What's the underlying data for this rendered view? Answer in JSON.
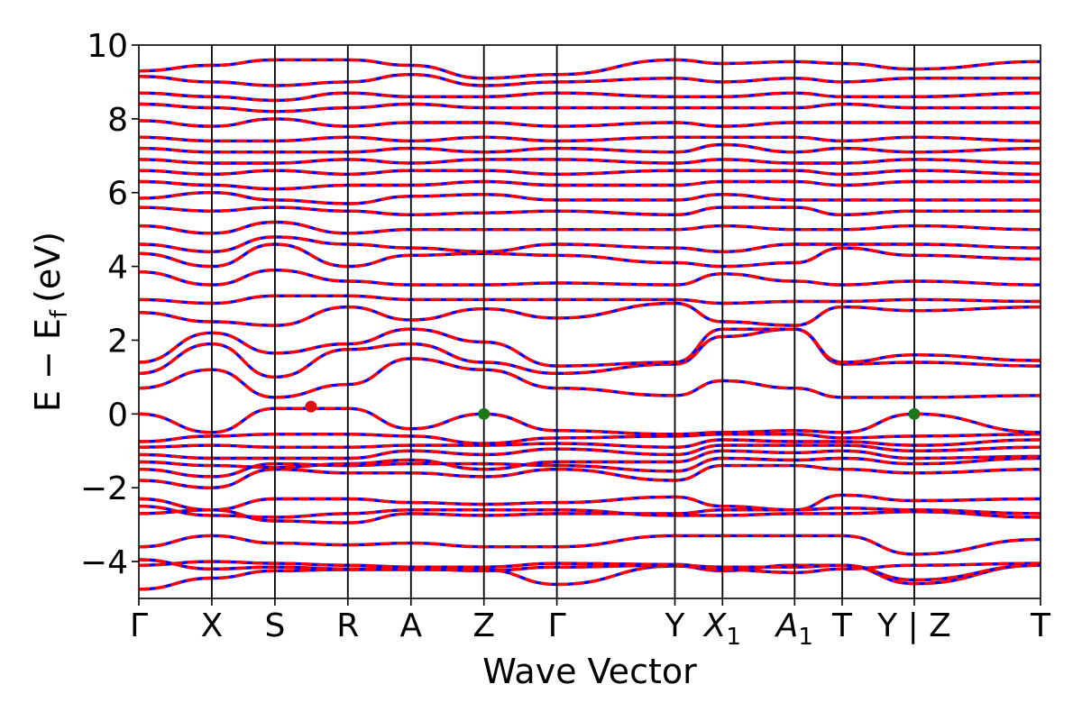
{
  "chart_data": {
    "type": "line",
    "title": "",
    "xlabel": "Wave Vector",
    "ylabel": "E − E",
    "ylabel_subscript": "f",
    "ylabel_unit": "(eV)",
    "ylim": [
      -5,
      10
    ],
    "yticks": [
      -4,
      -2,
      0,
      2,
      4,
      6,
      8,
      10
    ],
    "ytick_labels": [
      "−4",
      "−2",
      "0",
      "2",
      "4",
      "6",
      "8",
      "10"
    ],
    "xlim": [
      0,
      1
    ],
    "kpoints": [
      {
        "label": "Γ",
        "x": 0.0
      },
      {
        "label": "X",
        "x": 0.0809
      },
      {
        "label": "S",
        "x": 0.1509
      },
      {
        "label": "R",
        "x": 0.2318
      },
      {
        "label": "A",
        "x": 0.3018
      },
      {
        "label": "Z",
        "x": 0.3827
      },
      {
        "label": "Γ",
        "x": 0.4636
      },
      {
        "label": "Y",
        "x": 0.5945
      },
      {
        "label": "X",
        "subscript": "1",
        "x": 0.6473
      },
      {
        "label": "A",
        "subscript": "1",
        "x": 0.7273
      },
      {
        "label": "T",
        "x": 0.78
      },
      {
        "label": "Y | Z",
        "x": 0.86
      },
      {
        "label": "T",
        "x": 1.0
      }
    ],
    "grid": false,
    "series_styles": [
      {
        "color": "#0000ff",
        "style": "solid"
      },
      {
        "color": "#ff0000",
        "style": "dashed"
      }
    ],
    "markers": [
      {
        "x": 0.1909,
        "y": 0.2,
        "color": "#dd1111"
      },
      {
        "x": 0.3827,
        "y": 0.0,
        "color": "#1a7a1a"
      },
      {
        "x": 0.86,
        "y": 0.0,
        "color": "#1a7a1a"
      }
    ],
    "bands": [
      {
        "y": [
          -4.75,
          -4.45,
          -4.25,
          -4.22,
          -4.22,
          -4.22,
          -4.62,
          -4.12,
          -4.25,
          -4.1,
          -4.1,
          -4.6,
          -4.1
        ]
      },
      {
        "y": [
          -4.1,
          -4.0,
          -4.05,
          -4.1,
          -4.15,
          -4.15,
          -4.05,
          -4.08,
          -4.22,
          -4.3,
          -4.2,
          -4.1,
          -4.05
        ]
      },
      {
        "y": [
          -3.95,
          -4.2,
          -4.15,
          -4.2,
          -4.2,
          -4.25,
          -4.15,
          -4.1,
          -4.15,
          -4.15,
          -4.1,
          -4.5,
          -4.1
        ]
      },
      {
        "y": [
          -3.6,
          -3.3,
          -3.5,
          -3.55,
          -3.5,
          -3.6,
          -3.6,
          -3.3,
          -3.3,
          -3.3,
          -3.3,
          -3.8,
          -3.4
        ]
      },
      {
        "y": [
          -2.7,
          -2.6,
          -2.9,
          -2.95,
          -2.7,
          -2.75,
          -2.7,
          -2.7,
          -2.6,
          -2.6,
          -2.55,
          -2.6,
          -2.7
        ]
      },
      {
        "y": [
          -2.5,
          -2.75,
          -2.8,
          -2.7,
          -2.6,
          -2.6,
          -2.6,
          -2.75,
          -2.75,
          -2.7,
          -2.7,
          -2.65,
          -2.8
        ]
      },
      {
        "y": [
          -2.3,
          -2.6,
          -2.3,
          -2.3,
          -2.4,
          -2.45,
          -2.4,
          -2.25,
          -2.5,
          -2.6,
          -2.2,
          -2.35,
          -2.3
        ]
      },
      {
        "y": [
          -1.8,
          -2.0,
          -1.5,
          -1.6,
          -1.6,
          -1.7,
          -1.5,
          -1.8,
          -1.4,
          -1.4,
          -1.5,
          -1.6,
          -1.5
        ]
      },
      {
        "y": [
          -1.5,
          -1.7,
          -1.35,
          -1.4,
          -1.35,
          -1.35,
          -1.4,
          -1.55,
          -1.2,
          -1.25,
          -1.2,
          -1.35,
          -1.2
        ]
      },
      {
        "y": [
          -1.3,
          -1.4,
          -1.45,
          -1.35,
          -1.25,
          -1.5,
          -1.3,
          -1.3,
          -1.0,
          -1.05,
          -1.0,
          -1.2,
          -1.15
        ]
      },
      {
        "y": [
          -1.1,
          -1.2,
          -1.2,
          -1.2,
          -1.0,
          -1.1,
          -0.95,
          -1.1,
          -0.85,
          -0.85,
          -0.85,
          -1.0,
          -0.9
        ]
      },
      {
        "y": [
          -0.9,
          -0.85,
          -0.9,
          -0.9,
          -0.85,
          -0.85,
          -0.8,
          -0.9,
          -0.7,
          -0.75,
          -0.75,
          -0.85,
          -0.7
        ]
      },
      {
        "y": [
          -0.75,
          -0.6,
          -0.55,
          -0.55,
          -0.6,
          -0.8,
          -0.65,
          -0.6,
          -0.55,
          -0.55,
          -0.65,
          -0.6,
          -0.55
        ]
      },
      {
        "y": [
          0.0,
          -0.5,
          0.15,
          0.15,
          -0.4,
          0.0,
          -0.45,
          -0.55,
          -0.5,
          -0.45,
          -0.5,
          0.0,
          -0.5
        ]
      },
      {
        "y": [
          0.7,
          1.2,
          0.45,
          0.8,
          1.5,
          1.2,
          0.7,
          0.5,
          0.9,
          0.7,
          0.45,
          0.45,
          0.5
        ]
      },
      {
        "y": [
          1.1,
          1.9,
          1.0,
          1.75,
          1.9,
          1.4,
          1.1,
          1.35,
          2.1,
          2.3,
          1.35,
          1.4,
          1.3
        ]
      },
      {
        "y": [
          1.4,
          2.2,
          1.65,
          1.9,
          2.3,
          1.95,
          1.3,
          1.4,
          2.3,
          2.3,
          1.4,
          1.6,
          1.45
        ]
      },
      {
        "y": [
          2.75,
          2.5,
          2.4,
          2.9,
          2.55,
          2.85,
          2.6,
          3.0,
          2.5,
          2.4,
          2.9,
          2.8,
          2.9
        ]
      },
      {
        "y": [
          3.1,
          3.0,
          3.2,
          3.2,
          3.1,
          3.1,
          3.1,
          3.1,
          3.0,
          3.05,
          3.05,
          3.1,
          3.05
        ]
      },
      {
        "y": [
          3.85,
          3.5,
          3.9,
          3.6,
          3.5,
          3.5,
          3.55,
          3.5,
          3.8,
          3.6,
          3.5,
          3.6,
          3.5
        ]
      },
      {
        "y": [
          4.35,
          4.0,
          4.6,
          4.0,
          4.3,
          4.35,
          4.3,
          4.1,
          4.0,
          4.1,
          4.5,
          4.3,
          4.2
        ]
      },
      {
        "y": [
          4.6,
          4.4,
          4.8,
          4.6,
          4.5,
          4.4,
          4.6,
          4.5,
          4.4,
          4.6,
          4.6,
          4.6,
          4.5
        ]
      },
      {
        "y": [
          5.1,
          4.9,
          5.2,
          4.9,
          5.0,
          5.0,
          5.0,
          5.0,
          5.1,
          5.0,
          5.0,
          5.1,
          5.0
        ]
      },
      {
        "y": [
          5.6,
          5.5,
          5.6,
          5.5,
          5.4,
          5.45,
          5.5,
          5.4,
          5.6,
          5.6,
          5.4,
          5.5,
          5.5
        ]
      },
      {
        "y": [
          5.85,
          6.0,
          5.8,
          5.7,
          5.9,
          5.95,
          5.8,
          5.8,
          5.95,
          5.8,
          5.8,
          5.8,
          5.8
        ]
      },
      {
        "y": [
          6.3,
          6.2,
          6.1,
          6.2,
          6.2,
          6.3,
          6.2,
          6.2,
          6.3,
          6.3,
          6.2,
          6.3,
          6.3
        ]
      },
      {
        "y": [
          6.6,
          6.5,
          6.6,
          6.5,
          6.6,
          6.6,
          6.5,
          6.6,
          6.6,
          6.6,
          6.5,
          6.6,
          6.5
        ]
      },
      {
        "y": [
          6.9,
          6.8,
          6.8,
          6.9,
          6.8,
          6.9,
          6.9,
          6.8,
          6.9,
          6.8,
          6.8,
          6.9,
          6.8
        ]
      },
      {
        "y": [
          7.2,
          7.1,
          7.1,
          7.1,
          7.2,
          7.1,
          7.2,
          7.1,
          7.3,
          7.1,
          7.2,
          7.1,
          7.2
        ]
      },
      {
        "y": [
          7.5,
          7.4,
          7.4,
          7.5,
          7.4,
          7.5,
          7.4,
          7.5,
          7.5,
          7.5,
          7.4,
          7.5,
          7.4
        ]
      },
      {
        "y": [
          7.95,
          7.8,
          8.0,
          7.8,
          7.9,
          7.9,
          7.8,
          7.9,
          7.8,
          7.9,
          7.9,
          7.9,
          7.9
        ]
      },
      {
        "y": [
          8.4,
          8.3,
          8.2,
          8.3,
          8.4,
          8.3,
          8.3,
          8.3,
          8.3,
          8.3,
          8.4,
          8.3,
          8.3
        ]
      },
      {
        "y": [
          8.7,
          8.6,
          8.5,
          8.7,
          8.6,
          8.6,
          8.7,
          8.6,
          8.6,
          8.7,
          8.6,
          8.6,
          8.7
        ]
      },
      {
        "y": [
          9.15,
          9.0,
          8.9,
          9.0,
          9.2,
          8.9,
          9.0,
          9.1,
          9.0,
          9.1,
          9.0,
          9.1,
          9.1
        ]
      },
      {
        "y": [
          9.3,
          9.45,
          9.6,
          9.6,
          9.45,
          9.1,
          9.2,
          9.6,
          9.5,
          9.55,
          9.5,
          9.35,
          9.55
        ]
      }
    ]
  }
}
